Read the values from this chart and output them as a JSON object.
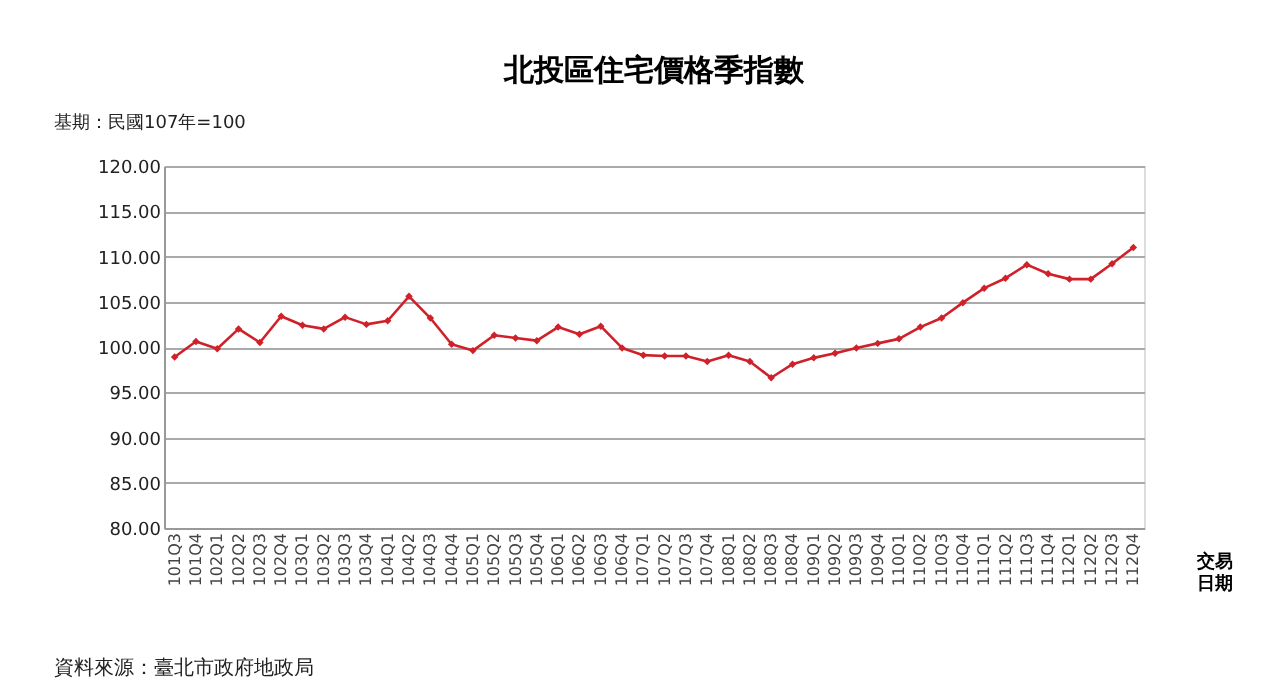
{
  "chart_data": {
    "type": "line",
    "title": "北投區住宅價格季指數",
    "xlabel": "交易日期",
    "annotations": [
      "基期：民國107年=100",
      "資料來源：臺北市政府地政局"
    ],
    "categories": [
      "101Q3",
      "101Q4",
      "102Q1",
      "102Q2",
      "102Q3",
      "102Q4",
      "103Q1",
      "103Q2",
      "103Q3",
      "103Q4",
      "104Q1",
      "104Q2",
      "104Q3",
      "104Q4",
      "105Q1",
      "105Q2",
      "105Q3",
      "105Q4",
      "106Q1",
      "106Q2",
      "106Q3",
      "106Q4",
      "107Q1",
      "107Q2",
      "107Q3",
      "107Q4",
      "108Q1",
      "108Q2",
      "108Q3",
      "108Q4",
      "109Q1",
      "109Q2",
      "109Q3",
      "109Q4",
      "110Q1",
      "110Q2",
      "110Q3",
      "110Q4",
      "111Q1",
      "111Q2",
      "111Q3",
      "111Q4",
      "112Q1",
      "112Q2",
      "112Q3",
      "112Q4"
    ],
    "series": [
      {
        "color": "#d0202a",
        "values": [
          98.9,
          100.6,
          99.8,
          102.0,
          100.5,
          103.4,
          102.4,
          102.0,
          103.3,
          102.5,
          102.9,
          105.6,
          103.2,
          100.3,
          99.6,
          101.3,
          101.0,
          100.7,
          102.2,
          101.4,
          102.3,
          99.9,
          99.1,
          99.0,
          99.0,
          98.4,
          99.1,
          98.4,
          96.6,
          98.1,
          98.8,
          99.3,
          99.9,
          100.4,
          100.9,
          102.2,
          103.2,
          104.9,
          106.5,
          107.6,
          109.1,
          108.1,
          107.5,
          107.5,
          109.2,
          111.0
        ]
      }
    ],
    "ylim": [
      80,
      120
    ],
    "yticks": [
      {
        "value": 80,
        "label": "80.00"
      },
      {
        "value": 85,
        "label": "85.00"
      },
      {
        "value": 90,
        "label": "90.00"
      },
      {
        "value": 95,
        "label": "95.00"
      },
      {
        "value": 100,
        "label": "100.00"
      },
      {
        "value": 105,
        "label": "105.00"
      },
      {
        "value": 110,
        "label": "110.00"
      },
      {
        "value": 115,
        "label": "115.00"
      },
      {
        "value": 120,
        "label": "120.00"
      }
    ],
    "grid": "y",
    "marker": "diamond",
    "line_style": "solid"
  }
}
